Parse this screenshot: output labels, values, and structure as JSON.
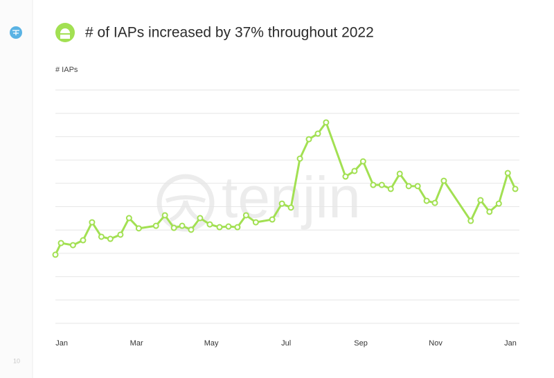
{
  "page_number": "10",
  "watermark": "tenjin",
  "chart_data": {
    "type": "line",
    "title": "# of IAPs increased by 37% throughout 2022",
    "y_label": "# IAPs",
    "color": "#a2e052",
    "x": [
      -0.17,
      -0.02,
      0.3,
      0.57,
      0.81,
      1.06,
      1.3,
      1.57,
      1.8,
      2.06,
      2.52,
      2.76,
      3.0,
      3.22,
      3.46,
      3.7,
      3.96,
      4.22,
      4.46,
      4.7,
      4.93,
      5.19,
      5.63,
      5.89,
      6.13,
      6.37,
      6.61,
      6.85,
      7.07,
      7.59,
      7.83,
      8.06,
      8.33,
      8.56,
      8.8,
      9.04,
      9.28,
      9.52,
      9.76,
      9.98,
      10.22,
      10.94,
      11.2,
      11.44,
      11.69,
      11.93,
      12.13
    ],
    "values": [
      2.94,
      3.44,
      3.35,
      3.56,
      4.33,
      3.71,
      3.62,
      3.8,
      4.51,
      4.07,
      4.18,
      4.63,
      4.09,
      4.18,
      4.01,
      4.51,
      4.24,
      4.12,
      4.15,
      4.12,
      4.63,
      4.33,
      4.45,
      5.13,
      4.96,
      7.06,
      7.89,
      8.13,
      8.61,
      6.29,
      6.53,
      6.94,
      5.93,
      5.93,
      5.76,
      6.41,
      5.88,
      5.88,
      5.25,
      5.16,
      6.11,
      4.39,
      5.28,
      4.78,
      5.13,
      6.44,
      5.76
    ],
    "xlim": [
      -0.17,
      12.24
    ],
    "xticks": [
      {
        "value": 0,
        "label": "Jan"
      },
      {
        "value": 2,
        "label": "Mar"
      },
      {
        "value": 4,
        "label": "May"
      },
      {
        "value": 6,
        "label": "Jul"
      },
      {
        "value": 8,
        "label": "Sep"
      },
      {
        "value": 10,
        "label": "Nov"
      },
      {
        "value": 12,
        "label": "Jan"
      }
    ],
    "ylim": [
      0,
      10
    ],
    "yticks": [
      0,
      1,
      2,
      3,
      4,
      5,
      6,
      7,
      8,
      9,
      10
    ],
    "grid": true
  }
}
